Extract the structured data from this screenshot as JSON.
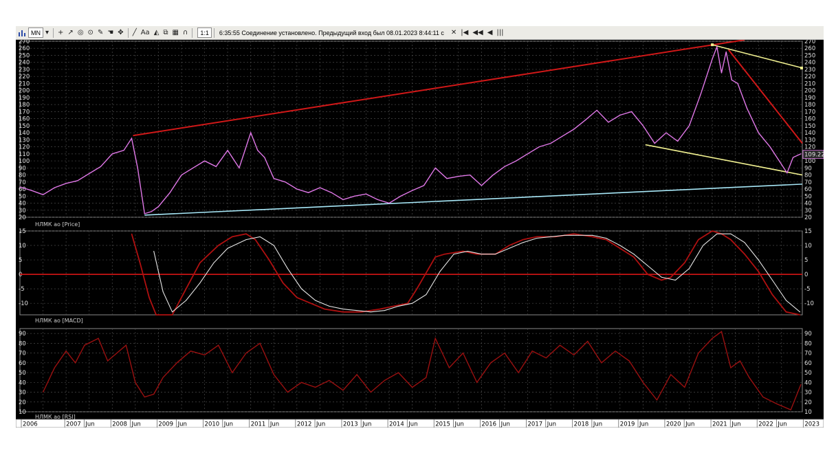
{
  "toolbar": {
    "timeframe": "MN",
    "font_label": "Aa",
    "zoom": "1:1",
    "status": "6:35:55  Соединение установлено. Предыдущий вход был 08.01.2023 8:44:11 с",
    "close_glyph": "✕",
    "nav": [
      "|◀",
      "◀◀",
      "◀",
      "|||"
    ],
    "icons": [
      "bars-chart-icon",
      "crosshair-icon",
      "arrow-icon",
      "circle-icon",
      "target-icon",
      "ruler-icon",
      "hand-icon",
      "pan-icon",
      "line-tool-icon",
      "text-tool-icon",
      "fill-icon",
      "shapes-icon",
      "grid-icon",
      "magnet-icon"
    ]
  },
  "panels": {
    "price": {
      "label": "НЛМК ао [Price]",
      "last_value": "109.22"
    },
    "macd": {
      "label": "НЛМК ао [MACD]"
    },
    "rsi": {
      "label": "НЛМК ао [RSI]"
    }
  },
  "x_axis": {
    "labels": [
      "2006",
      "2007",
      "Jun",
      "2008",
      "Jun",
      "2009",
      "Jun",
      "2010",
      "Jun",
      "2011",
      "Jun",
      "2012",
      "Jun",
      "2013",
      "Jun",
      "2014",
      "Jun",
      "2015",
      "Jun",
      "2016",
      "Jun",
      "2017",
      "Jun",
      "2018",
      "Jun",
      "2019",
      "Jun",
      "2020",
      "Jun",
      "2021",
      "Jun",
      "2022",
      "Jun",
      "2023"
    ]
  },
  "colors": {
    "price_line": "#e078e8",
    "red_line": "#d01818",
    "yellow_line": "#f0f090",
    "cyan_line": "#a8e8f8",
    "macd_red": "#b01010",
    "macd_signal": "#e8e8e8",
    "rsi_line": "#9a1010",
    "grid": "#4a4a4a"
  },
  "chart_data": [
    {
      "type": "line",
      "name": "НЛМК ао [Price]",
      "ylim": [
        20,
        270
      ],
      "yticks": [
        20,
        30,
        40,
        50,
        60,
        70,
        80,
        90,
        100,
        110,
        120,
        130,
        140,
        150,
        160,
        170,
        180,
        190,
        200,
        210,
        220,
        230,
        240,
        250,
        260,
        270
      ],
      "x": [
        2006.0,
        2006.25,
        2006.5,
        2006.75,
        2007.0,
        2007.25,
        2007.5,
        2007.75,
        2008.0,
        2008.25,
        2008.42,
        2008.55,
        2008.7,
        2008.85,
        2009.0,
        2009.25,
        2009.5,
        2009.75,
        2010.0,
        2010.25,
        2010.5,
        2010.75,
        2011.0,
        2011.15,
        2011.3,
        2011.5,
        2011.75,
        2012.0,
        2012.25,
        2012.5,
        2012.75,
        2013.0,
        2013.25,
        2013.5,
        2013.75,
        2014.0,
        2014.25,
        2014.5,
        2014.75,
        2015.0,
        2015.25,
        2015.5,
        2015.75,
        2016.0,
        2016.25,
        2016.5,
        2016.75,
        2017.0,
        2017.25,
        2017.5,
        2017.75,
        2018.0,
        2018.25,
        2018.5,
        2018.75,
        2019.0,
        2019.25,
        2019.5,
        2019.75,
        2020.0,
        2020.25,
        2020.5,
        2020.75,
        2021.0,
        2021.1,
        2021.2,
        2021.3,
        2021.42,
        2021.55,
        2021.75,
        2022.0,
        2022.25,
        2022.5,
        2022.62,
        2022.75,
        2022.92
      ],
      "y": [
        63,
        58,
        52,
        62,
        68,
        72,
        82,
        92,
        110,
        115,
        132,
        90,
        25,
        28,
        35,
        55,
        80,
        90,
        100,
        92,
        115,
        90,
        140,
        115,
        105,
        75,
        70,
        60,
        55,
        62,
        55,
        45,
        50,
        53,
        45,
        40,
        50,
        58,
        65,
        90,
        75,
        78,
        80,
        65,
        80,
        92,
        100,
        110,
        120,
        125,
        135,
        145,
        158,
        172,
        155,
        165,
        170,
        150,
        125,
        140,
        128,
        150,
        195,
        245,
        262,
        225,
        255,
        215,
        210,
        175,
        140,
        120,
        95,
        83,
        105,
        110
      ]
    },
    {
      "type": "line",
      "name": "НЛМК ао [MACD]",
      "ylim": [
        -14,
        15
      ],
      "yticks": [
        -10,
        -5,
        0,
        5,
        10,
        15
      ],
      "series": [
        {
          "name": "MACD",
          "x": [
            2008.42,
            2008.6,
            2008.8,
            2008.95,
            2009.3,
            2009.6,
            2009.9,
            2010.3,
            2010.6,
            2010.9,
            2011.1,
            2011.4,
            2011.7,
            2012.0,
            2012.3,
            2012.6,
            2013.0,
            2013.4,
            2013.8,
            2014.1,
            2014.4,
            2014.6,
            2015.0,
            2015.2,
            2015.6,
            2015.9,
            2016.3,
            2016.6,
            2016.9,
            2017.2,
            2017.6,
            2018.0,
            2018.4,
            2018.7,
            2019.0,
            2019.3,
            2019.6,
            2019.9,
            2020.1,
            2020.4,
            2020.7,
            2021.0,
            2021.2,
            2021.4,
            2021.7,
            2022.0,
            2022.3,
            2022.6,
            2022.9
          ],
          "y": [
            14,
            4,
            -8,
            -14,
            -14,
            -5,
            4,
            10,
            13,
            14,
            12,
            5,
            -3,
            -8,
            -10,
            -12,
            -13,
            -13,
            -12,
            -11,
            -10,
            -5,
            6,
            7,
            8,
            7,
            7,
            10,
            12,
            13,
            13,
            14,
            13,
            12,
            9,
            6,
            0,
            -2,
            -1,
            4,
            12,
            15,
            14,
            12,
            7,
            1,
            -7,
            -13,
            -14
          ]
        },
        {
          "name": "Signal",
          "x": [
            2008.9,
            2009.1,
            2009.3,
            2009.6,
            2009.9,
            2010.2,
            2010.5,
            2010.9,
            2011.2,
            2011.5,
            2011.8,
            2012.1,
            2012.4,
            2012.7,
            2013.0,
            2013.3,
            2013.6,
            2013.9,
            2014.2,
            2014.5,
            2014.8,
            2015.1,
            2015.4,
            2015.7,
            2016.0,
            2016.3,
            2016.6,
            2016.9,
            2017.2,
            2017.5,
            2017.8,
            2018.1,
            2018.4,
            2018.7,
            2019.0,
            2019.3,
            2019.6,
            2019.9,
            2020.2,
            2020.5,
            2020.8,
            2021.1,
            2021.4,
            2021.7,
            2022.0,
            2022.3,
            2022.6,
            2022.9
          ],
          "y": [
            8,
            -6,
            -13,
            -9,
            -3,
            4,
            9,
            12,
            13,
            10,
            2,
            -5,
            -9,
            -11,
            -12,
            -12.5,
            -13,
            -12.5,
            -11,
            -10,
            -7,
            1,
            7,
            8,
            7,
            7,
            9,
            11,
            12.5,
            13,
            13.5,
            13.5,
            13.5,
            12.5,
            10,
            7,
            3,
            -1,
            -2,
            2,
            10,
            14,
            14,
            11,
            5,
            -2,
            -9,
            -13
          ]
        }
      ]
    },
    {
      "type": "line",
      "name": "НЛМК ао [RSI]",
      "ylim": [
        10,
        95
      ],
      "yticks": [
        10,
        20,
        30,
        40,
        50,
        60,
        70,
        80,
        90
      ],
      "x": [
        2006.5,
        2006.75,
        2007.0,
        2007.2,
        2007.4,
        2007.7,
        2007.9,
        2008.1,
        2008.3,
        2008.5,
        2008.7,
        2008.9,
        2009.1,
        2009.4,
        2009.7,
        2010.0,
        2010.3,
        2010.6,
        2010.9,
        2011.2,
        2011.5,
        2011.8,
        2012.1,
        2012.4,
        2012.7,
        2013.0,
        2013.3,
        2013.6,
        2013.9,
        2014.2,
        2014.5,
        2014.8,
        2015.0,
        2015.3,
        2015.6,
        2015.9,
        2016.2,
        2016.5,
        2016.8,
        2017.1,
        2017.4,
        2017.7,
        2018.0,
        2018.3,
        2018.6,
        2018.9,
        2019.2,
        2019.5,
        2019.8,
        2020.1,
        2020.4,
        2020.7,
        2021.0,
        2021.2,
        2021.4,
        2021.6,
        2021.8,
        2022.1,
        2022.4,
        2022.7,
        2022.92
      ],
      "y": [
        30,
        55,
        72,
        60,
        78,
        85,
        62,
        70,
        78,
        40,
        25,
        28,
        45,
        60,
        72,
        68,
        78,
        50,
        70,
        80,
        48,
        30,
        40,
        35,
        42,
        32,
        48,
        30,
        42,
        50,
        35,
        45,
        85,
        55,
        70,
        40,
        60,
        70,
        50,
        72,
        65,
        78,
        68,
        82,
        60,
        72,
        62,
        40,
        22,
        48,
        35,
        70,
        85,
        92,
        55,
        62,
        45,
        25,
        18,
        12,
        38
      ]
    }
  ]
}
